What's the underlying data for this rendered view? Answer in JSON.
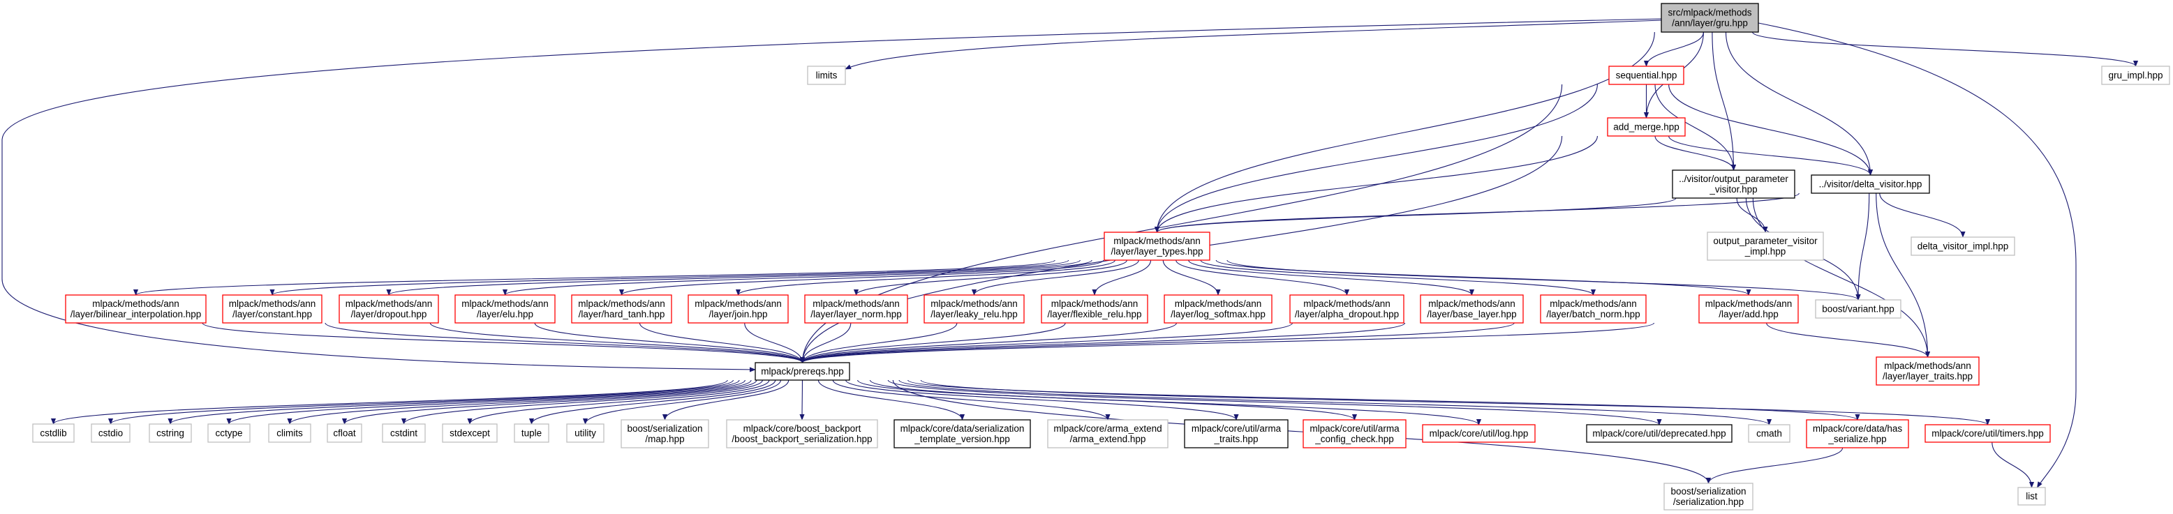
{
  "colors": {
    "edge": "#191970",
    "root_fill": "#bfbfbf",
    "external_border": "#bfbfbf",
    "truncated_border": "#ff0000",
    "normal_border": "#000000"
  },
  "nodes": [
    {
      "id": "gru",
      "label": [
        "src/mlpack/methods",
        "/ann/layer/gru.hpp"
      ],
      "kind": "root"
    },
    {
      "id": "limits",
      "label": [
        "limits"
      ],
      "kind": "external"
    },
    {
      "id": "sequential",
      "label": [
        "sequential.hpp"
      ],
      "kind": "truncated"
    },
    {
      "id": "add_merge",
      "label": [
        "add_merge.hpp"
      ],
      "kind": "truncated"
    },
    {
      "id": "opv",
      "label": [
        "../visitor/output_parameter",
        "_visitor.hpp"
      ],
      "kind": "normal"
    },
    {
      "id": "dv",
      "label": [
        "../visitor/delta_visitor.hpp"
      ],
      "kind": "normal"
    },
    {
      "id": "gru_impl",
      "label": [
        "gru_impl.hpp"
      ],
      "kind": "external"
    },
    {
      "id": "layer_types",
      "label": [
        "mlpack/methods/ann",
        "/layer/layer_types.hpp"
      ],
      "kind": "truncated"
    },
    {
      "id": "opv_impl",
      "label": [
        "output_parameter_visitor",
        "_impl.hpp"
      ],
      "kind": "external"
    },
    {
      "id": "dv_impl",
      "label": [
        "delta_visitor_impl.hpp"
      ],
      "kind": "external"
    },
    {
      "id": "bilinear",
      "label": [
        "mlpack/methods/ann",
        "/layer/bilinear_interpolation.hpp"
      ],
      "kind": "truncated"
    },
    {
      "id": "constant",
      "label": [
        "mlpack/methods/ann",
        "/layer/constant.hpp"
      ],
      "kind": "truncated"
    },
    {
      "id": "dropout",
      "label": [
        "mlpack/methods/ann",
        "/layer/dropout.hpp"
      ],
      "kind": "truncated"
    },
    {
      "id": "elu",
      "label": [
        "mlpack/methods/ann",
        "/layer/elu.hpp"
      ],
      "kind": "truncated"
    },
    {
      "id": "hard_tanh",
      "label": [
        "mlpack/methods/ann",
        "/layer/hard_tanh.hpp"
      ],
      "kind": "truncated"
    },
    {
      "id": "join",
      "label": [
        "mlpack/methods/ann",
        "/layer/join.hpp"
      ],
      "kind": "truncated"
    },
    {
      "id": "layer_norm",
      "label": [
        "mlpack/methods/ann",
        "/layer/layer_norm.hpp"
      ],
      "kind": "truncated"
    },
    {
      "id": "leaky_relu",
      "label": [
        "mlpack/methods/ann",
        "/layer/leaky_relu.hpp"
      ],
      "kind": "truncated"
    },
    {
      "id": "flexible_relu",
      "label": [
        "mlpack/methods/ann",
        "/layer/flexible_relu.hpp"
      ],
      "kind": "truncated"
    },
    {
      "id": "log_softmax",
      "label": [
        "mlpack/methods/ann",
        "/layer/log_softmax.hpp"
      ],
      "kind": "truncated"
    },
    {
      "id": "alpha_dropout",
      "label": [
        "mlpack/methods/ann",
        "/layer/alpha_dropout.hpp"
      ],
      "kind": "truncated"
    },
    {
      "id": "base_layer",
      "label": [
        "mlpack/methods/ann",
        "/layer/base_layer.hpp"
      ],
      "kind": "truncated"
    },
    {
      "id": "batch_norm",
      "label": [
        "mlpack/methods/ann",
        "/layer/batch_norm.hpp"
      ],
      "kind": "truncated"
    },
    {
      "id": "add",
      "label": [
        "mlpack/methods/ann",
        "/layer/add.hpp"
      ],
      "kind": "truncated"
    },
    {
      "id": "variant",
      "label": [
        "boost/variant.hpp"
      ],
      "kind": "external"
    },
    {
      "id": "layer_traits",
      "label": [
        "mlpack/methods/ann",
        "/layer/layer_traits.hpp"
      ],
      "kind": "truncated"
    },
    {
      "id": "prereqs",
      "label": [
        "mlpack/prereqs.hpp"
      ],
      "kind": "normal"
    },
    {
      "id": "cstdlib",
      "label": [
        "cstdlib"
      ],
      "kind": "external"
    },
    {
      "id": "cstdio",
      "label": [
        "cstdio"
      ],
      "kind": "external"
    },
    {
      "id": "cstring",
      "label": [
        "cstring"
      ],
      "kind": "external"
    },
    {
      "id": "cctype",
      "label": [
        "cctype"
      ],
      "kind": "external"
    },
    {
      "id": "climits",
      "label": [
        "climits"
      ],
      "kind": "external"
    },
    {
      "id": "cfloat",
      "label": [
        "cfloat"
      ],
      "kind": "external"
    },
    {
      "id": "cstdint",
      "label": [
        "cstdint"
      ],
      "kind": "external"
    },
    {
      "id": "stdexcept",
      "label": [
        "stdexcept"
      ],
      "kind": "external"
    },
    {
      "id": "tuple",
      "label": [
        "tuple"
      ],
      "kind": "external"
    },
    {
      "id": "utility",
      "label": [
        "utility"
      ],
      "kind": "external"
    },
    {
      "id": "ser_map",
      "label": [
        "boost/serialization",
        "/map.hpp"
      ],
      "kind": "external"
    },
    {
      "id": "backport",
      "label": [
        "mlpack/core/boost_backport",
        "/boost_backport_serialization.hpp"
      ],
      "kind": "external"
    },
    {
      "id": "ser_tv",
      "label": [
        "mlpack/core/data/serialization",
        "_template_version.hpp"
      ],
      "kind": "normal"
    },
    {
      "id": "arma_extend",
      "label": [
        "mlpack/core/arma_extend",
        "/arma_extend.hpp"
      ],
      "kind": "external"
    },
    {
      "id": "arma_traits",
      "label": [
        "mlpack/core/util/arma",
        "_traits.hpp"
      ],
      "kind": "normal"
    },
    {
      "id": "arma_cc",
      "label": [
        "mlpack/core/util/arma",
        "_config_check.hpp"
      ],
      "kind": "truncated"
    },
    {
      "id": "log",
      "label": [
        "mlpack/core/util/log.hpp"
      ],
      "kind": "truncated"
    },
    {
      "id": "deprecated",
      "label": [
        "mlpack/core/util/deprecated.hpp"
      ],
      "kind": "normal"
    },
    {
      "id": "cmath",
      "label": [
        "cmath"
      ],
      "kind": "external"
    },
    {
      "id": "has_ser",
      "label": [
        "mlpack/core/data/has",
        "_serialize.hpp"
      ],
      "kind": "truncated"
    },
    {
      "id": "timers",
      "label": [
        "mlpack/core/util/timers.hpp"
      ],
      "kind": "truncated"
    },
    {
      "id": "ser_ser",
      "label": [
        "boost/serialization",
        "/serialization.hpp"
      ],
      "kind": "external"
    },
    {
      "id": "list",
      "label": [
        "list"
      ],
      "kind": "external"
    }
  ],
  "edges": [
    [
      "gru",
      "prereqs"
    ],
    [
      "gru",
      "limits"
    ],
    [
      "gru",
      "layer_types"
    ],
    [
      "gru",
      "sequential"
    ],
    [
      "gru",
      "add_merge"
    ],
    [
      "gru",
      "opv"
    ],
    [
      "gru",
      "dv"
    ],
    [
      "gru",
      "gru_impl"
    ],
    [
      "gru",
      "list"
    ],
    [
      "sequential",
      "prereqs"
    ],
    [
      "sequential",
      "layer_types"
    ],
    [
      "sequential",
      "add_merge"
    ],
    [
      "sequential",
      "opv"
    ],
    [
      "sequential",
      "dv"
    ],
    [
      "add_merge",
      "layer_types"
    ],
    [
      "add_merge",
      "opv"
    ],
    [
      "add_merge",
      "dv"
    ],
    [
      "add_merge",
      "prereqs"
    ],
    [
      "opv",
      "layer_types"
    ],
    [
      "opv",
      "opv_impl"
    ],
    [
      "opv",
      "variant"
    ],
    [
      "opv",
      "layer_traits"
    ],
    [
      "dv",
      "layer_types"
    ],
    [
      "dv",
      "variant"
    ],
    [
      "dv",
      "dv_impl"
    ],
    [
      "dv",
      "layer_traits"
    ],
    [
      "layer_types",
      "bilinear"
    ],
    [
      "layer_types",
      "constant"
    ],
    [
      "layer_types",
      "dropout"
    ],
    [
      "layer_types",
      "elu"
    ],
    [
      "layer_types",
      "hard_tanh"
    ],
    [
      "layer_types",
      "join"
    ],
    [
      "layer_types",
      "layer_norm"
    ],
    [
      "layer_types",
      "leaky_relu"
    ],
    [
      "layer_types",
      "flexible_relu"
    ],
    [
      "layer_types",
      "log_softmax"
    ],
    [
      "layer_types",
      "alpha_dropout"
    ],
    [
      "layer_types",
      "base_layer"
    ],
    [
      "layer_types",
      "batch_norm"
    ],
    [
      "layer_types",
      "add"
    ],
    [
      "layer_types",
      "variant"
    ],
    [
      "bilinear",
      "prereqs"
    ],
    [
      "constant",
      "prereqs"
    ],
    [
      "dropout",
      "prereqs"
    ],
    [
      "elu",
      "prereqs"
    ],
    [
      "hard_tanh",
      "prereqs"
    ],
    [
      "join",
      "prereqs"
    ],
    [
      "layer_norm",
      "prereqs"
    ],
    [
      "leaky_relu",
      "prereqs"
    ],
    [
      "flexible_relu",
      "prereqs"
    ],
    [
      "log_softmax",
      "prereqs"
    ],
    [
      "alpha_dropout",
      "prereqs"
    ],
    [
      "base_layer",
      "prereqs"
    ],
    [
      "batch_norm",
      "prereqs"
    ],
    [
      "add",
      "prereqs"
    ],
    [
      "add",
      "layer_traits"
    ],
    [
      "prereqs",
      "cstdlib"
    ],
    [
      "prereqs",
      "cstdio"
    ],
    [
      "prereqs",
      "cstring"
    ],
    [
      "prereqs",
      "cctype"
    ],
    [
      "prereqs",
      "climits"
    ],
    [
      "prereqs",
      "cfloat"
    ],
    [
      "prereqs",
      "cstdint"
    ],
    [
      "prereqs",
      "stdexcept"
    ],
    [
      "prereqs",
      "tuple"
    ],
    [
      "prereqs",
      "utility"
    ],
    [
      "prereqs",
      "ser_map"
    ],
    [
      "prereqs",
      "backport"
    ],
    [
      "prereqs",
      "ser_tv"
    ],
    [
      "prereqs",
      "arma_extend"
    ],
    [
      "prereqs",
      "arma_traits"
    ],
    [
      "prereqs",
      "arma_cc"
    ],
    [
      "prereqs",
      "log"
    ],
    [
      "prereqs",
      "deprecated"
    ],
    [
      "prereqs",
      "cmath"
    ],
    [
      "prereqs",
      "has_ser"
    ],
    [
      "prereqs",
      "timers"
    ],
    [
      "prereqs",
      "ser_ser"
    ],
    [
      "has_ser",
      "ser_ser"
    ],
    [
      "timers",
      "list"
    ]
  ]
}
